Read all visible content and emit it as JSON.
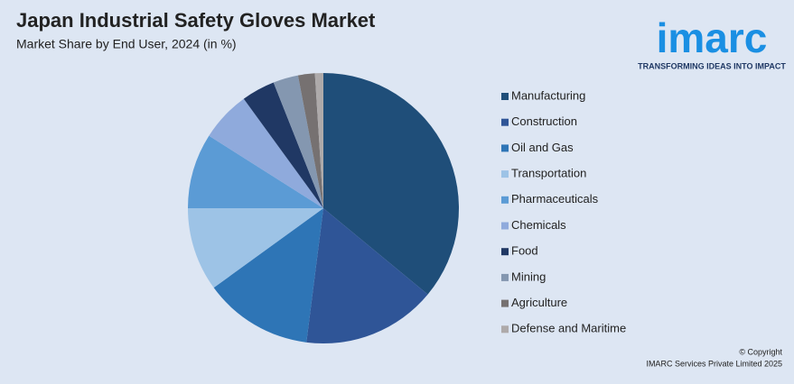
{
  "chart_data": {
    "type": "pie",
    "title": "Japan Industrial Safety Gloves Market",
    "subtitle": "Market Share by End User, 2024 (in %)",
    "categories": [
      "Manufacturing",
      "Construction",
      "Oil and Gas",
      "Transportation",
      "Pharmaceuticals",
      "Chemicals",
      "Food",
      "Mining",
      "Agriculture",
      "Defense and Maritime"
    ],
    "values": [
      36,
      16,
      13,
      10,
      9,
      6,
      4,
      3,
      2,
      1
    ],
    "colors": [
      "#1f4e79",
      "#2f5597",
      "#2e75b6",
      "#9dc3e6",
      "#5b9bd5",
      "#8faadc",
      "#203864",
      "#8497b0",
      "#767171",
      "#aeaaaa"
    ]
  },
  "logo": {
    "name": "imarc",
    "tagline": "TRANSFORMING IDEAS INTO IMPACT"
  },
  "footer": {
    "copyright": "© Copyright",
    "owner": "IMARC Services Private Limited 2025"
  }
}
